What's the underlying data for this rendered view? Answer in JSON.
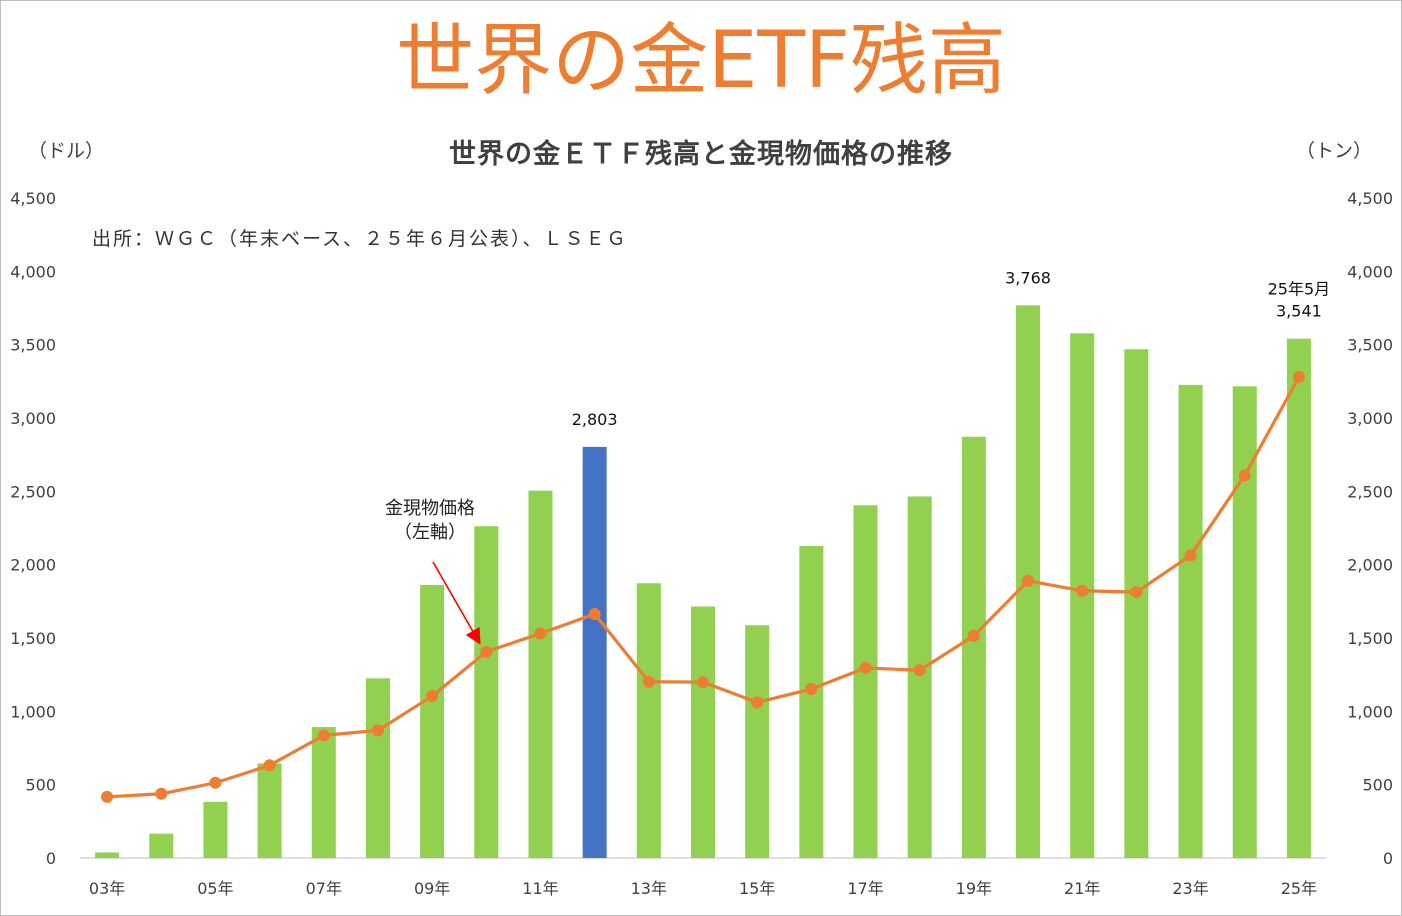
{
  "title": "世界の金ETF残高",
  "subtitle": "世界の金ＥＴＦ残高と金現物価格の推移",
  "source": "出所：ＷＧＣ（年末ベース、２５年６月公表）、ＬＳＥＧ",
  "left_unit": "（ドル）",
  "right_unit": "（トン）",
  "annotation": {
    "line1": "金現物価格",
    "line2": "（左軸）"
  },
  "last_bar_note": "25年5月",
  "colors": {
    "bar": "#92d050",
    "bar_highlight": "#4472c4",
    "line": "#ed7d31",
    "title": "#ed7d31",
    "arrow": "#ff0000"
  },
  "chart_data": {
    "type": "bar",
    "title": "世界の金ＥＴＦ残高と金現物価格の推移",
    "categories": [
      "03年",
      "04年",
      "05年",
      "06年",
      "07年",
      "08年",
      "09年",
      "10年",
      "11年",
      "12年",
      "13年",
      "14年",
      "15年",
      "16年",
      "17年",
      "18年",
      "19年",
      "20年",
      "21年",
      "22年",
      "23年",
      "24年",
      "25年"
    ],
    "x_tick_labels": [
      "03年",
      "",
      "05年",
      "",
      "07年",
      "",
      "09年",
      "",
      "11年",
      "",
      "13年",
      "",
      "15年",
      "",
      "17年",
      "",
      "19年",
      "",
      "21年",
      "",
      "23年",
      "",
      "25年"
    ],
    "series": [
      {
        "name": "金ETF残高",
        "axis": "right",
        "type": "bar",
        "values": [
          38,
          166,
          383,
          645,
          893,
          1225,
          1862,
          2262,
          2505,
          2803,
          1873,
          1715,
          1587,
          2127,
          2405,
          2465,
          2872,
          3768,
          3577,
          3469,
          3226,
          3216,
          3541
        ]
      },
      {
        "name": "金現物価格",
        "axis": "left",
        "type": "line",
        "values": [
          417,
          438,
          513,
          632,
          836,
          870,
          1104,
          1406,
          1531,
          1664,
          1202,
          1199,
          1061,
          1152,
          1296,
          1280,
          1515,
          1890,
          1822,
          1813,
          2063,
          2609,
          3280
        ]
      }
    ],
    "highlight_index": 9,
    "data_labels": [
      {
        "index": 9,
        "text": "2,803"
      },
      {
        "index": 17,
        "text": "3,768"
      },
      {
        "index": 22,
        "text": "3,541"
      }
    ],
    "y_left": {
      "ylim": [
        0,
        4500
      ],
      "ticks": [
        "0",
        "500",
        "1,000",
        "1,500",
        "2,000",
        "2,500",
        "3,000",
        "3,500",
        "4,000",
        "4,500"
      ]
    },
    "y_right": {
      "ylim": [
        0,
        4500
      ],
      "ticks": [
        "0",
        "500",
        "1,000",
        "1,500",
        "2,000",
        "2,500",
        "3,000",
        "3,500",
        "4,000",
        "4,500"
      ]
    },
    "grid": false,
    "legend": "none"
  }
}
